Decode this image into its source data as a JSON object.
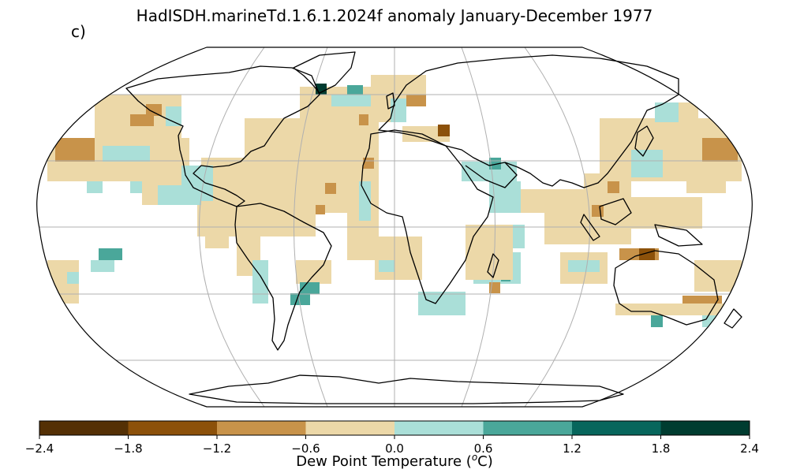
{
  "title": "HadISDH.marineTd.1.6.1.2024f anomaly January-December 1977",
  "panel_label": "c)",
  "projection": "Robinson",
  "colorbar": {
    "label_text": "Dew Point Temperature (",
    "label_sup": "o",
    "label_unit": "C)",
    "ticks": [
      "−2.4",
      "−1.8",
      "−1.2",
      "−0.6",
      "0.0",
      "0.6",
      "1.2",
      "1.8",
      "2.4"
    ],
    "bins": [
      {
        "range": [
          -2.4,
          -1.8
        ],
        "color": "#543005"
      },
      {
        "range": [
          -1.8,
          -1.2
        ],
        "color": "#8c510a"
      },
      {
        "range": [
          -1.2,
          -0.6
        ],
        "color": "#c8934a"
      },
      {
        "range": [
          -0.6,
          0.0
        ],
        "color": "#ecd8a8"
      },
      {
        "range": [
          0.0,
          0.6
        ],
        "color": "#aadfd8"
      },
      {
        "range": [
          0.6,
          1.2
        ],
        "color": "#4aa79a"
      },
      {
        "range": [
          1.2,
          1.8
        ],
        "color": "#07665c"
      },
      {
        "range": [
          1.8,
          2.4
        ],
        "color": "#003c30"
      }
    ]
  }
}
